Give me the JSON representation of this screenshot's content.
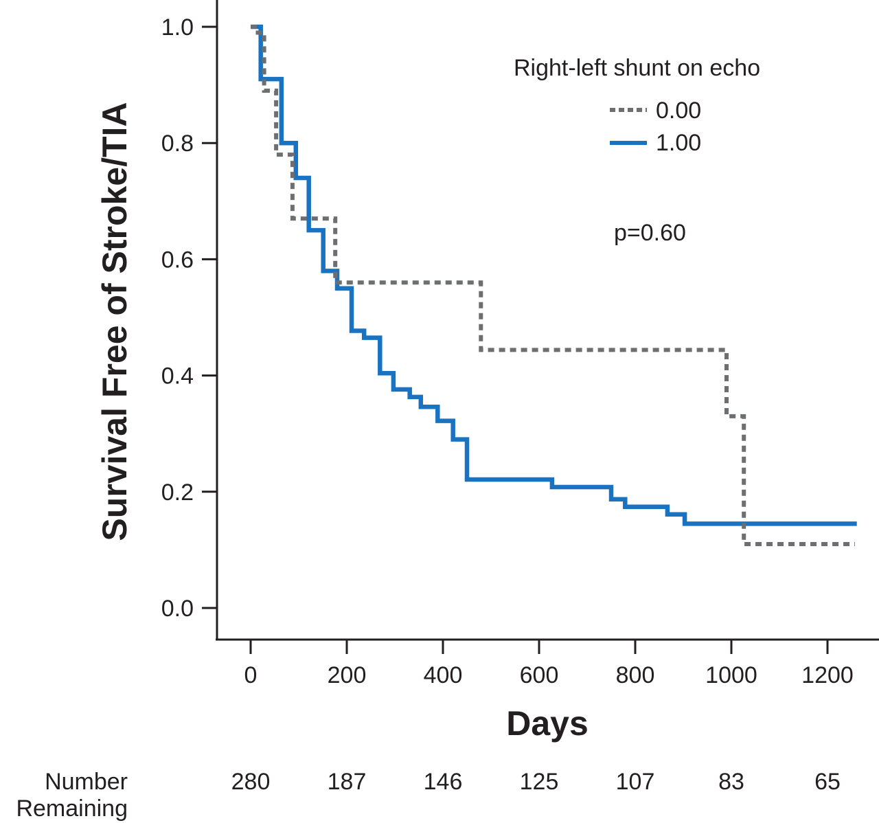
{
  "chart_data": {
    "type": "line",
    "subtype": "kaplan-meier-step",
    "title": "",
    "xlabel": "Days",
    "ylabel": "Survival Free of Stroke/TIA",
    "xlim": [
      -60,
      1300
    ],
    "ylim": [
      -0.05,
      1.05
    ],
    "x_ticks": [
      0,
      200,
      400,
      600,
      800,
      1000,
      1200
    ],
    "x_tick_labels": [
      "0",
      "200",
      "400",
      "600",
      "800",
      "1000",
      "1200"
    ],
    "y_ticks": [
      0.0,
      0.2,
      0.4,
      0.6,
      0.8,
      1.0
    ],
    "y_tick_labels": [
      "0.0",
      "0.2",
      "0.4",
      "0.6",
      "0.8",
      "1.0"
    ],
    "grid": false,
    "legend": {
      "title": "Right-left shunt on echo",
      "placement": "top-right",
      "entries": [
        "0.00",
        "1.00"
      ]
    },
    "annotation": "p=0.60",
    "series": [
      {
        "name": "0.00",
        "color": "#6d6e71",
        "style": "dotted",
        "x": [
          0,
          15,
          28,
          53,
          87,
          176,
          479,
          990,
          1026,
          1257
        ],
        "y": [
          1.0,
          0.99,
          0.89,
          0.78,
          0.67,
          0.56,
          0.444,
          0.33,
          0.11,
          0.11
        ]
      },
      {
        "name": "1.00",
        "color": "#1a73c1",
        "style": "solid",
        "x": [
          0,
          21,
          64,
          94,
          121,
          151,
          180,
          210,
          236,
          269,
          297,
          331,
          354,
          389,
          421,
          450,
          627,
          750,
          779,
          867,
          903,
          1261
        ],
        "y": [
          1.0,
          0.91,
          0.8,
          0.74,
          0.65,
          0.58,
          0.55,
          0.477,
          0.465,
          0.404,
          0.376,
          0.363,
          0.346,
          0.322,
          0.29,
          0.221,
          0.208,
          0.187,
          0.174,
          0.161,
          0.145,
          0.145
        ]
      }
    ],
    "number_remaining": {
      "label_line1": "Number",
      "label_line2": "Remaining",
      "x": [
        0,
        200,
        400,
        600,
        800,
        1000,
        1200
      ],
      "values": [
        "280",
        "187",
        "146",
        "125",
        "107",
        "83",
        "65"
      ]
    }
  }
}
